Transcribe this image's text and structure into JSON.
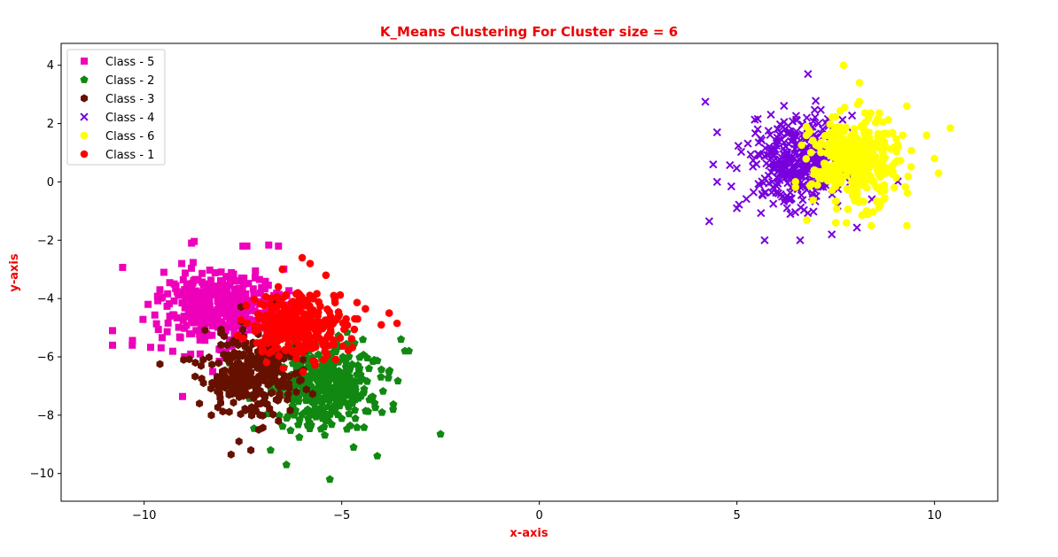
{
  "chart_data": {
    "type": "scatter",
    "title": "K_Means Clustering For Cluster size = 6",
    "xlabel": "x-axis",
    "ylabel": "y-axis",
    "xlim": [
      -12.1,
      11.6
    ],
    "ylim": [
      -10.95,
      4.75
    ],
    "xticks": [
      -10,
      -5,
      0,
      5,
      10
    ],
    "yticks": [
      -10,
      -8,
      -6,
      -4,
      -2,
      0,
      2,
      4
    ],
    "grid": false,
    "legend_position": "upper-left",
    "label_color": "#ee0000",
    "series": [
      {
        "name": "Class - 5",
        "color": "#ee00bb",
        "marker": "square",
        "center": [
          -8.1,
          -4.3
        ],
        "spread": [
          0.75,
          0.65
        ],
        "count": 380,
        "extreme_points": [
          [
            -10.8,
            -5.1
          ],
          [
            -10.8,
            -5.6
          ],
          [
            -8.8,
            -2.1
          ],
          [
            -7.5,
            -2.2
          ],
          [
            -9.9,
            -4.2
          ],
          [
            -6.6,
            -2.2
          ],
          [
            -9.5,
            -3.1
          ],
          [
            -7.4,
            -2.2
          ],
          [
            -10.3,
            -5.6
          ],
          [
            -9.6,
            -3.7
          ]
        ]
      },
      {
        "name": "Class - 2",
        "color": "#118811",
        "marker": "pentagon",
        "center": [
          -5.4,
          -7.0
        ],
        "spread": [
          0.7,
          0.75
        ],
        "count": 380,
        "extreme_points": [
          [
            -2.5,
            -8.65
          ],
          [
            -5.3,
            -10.2
          ],
          [
            -6.4,
            -9.7
          ],
          [
            -4.1,
            -9.4
          ],
          [
            -3.4,
            -5.8
          ],
          [
            -3.3,
            -5.8
          ],
          [
            -3.5,
            -5.4
          ],
          [
            -3.7,
            -7.8
          ],
          [
            -6.8,
            -9.2
          ],
          [
            -4.7,
            -9.1
          ]
        ]
      },
      {
        "name": "Class - 3",
        "color": "#661100",
        "marker": "hexagon",
        "center": [
          -7.3,
          -6.6
        ],
        "spread": [
          0.6,
          0.7
        ],
        "count": 300,
        "extreme_points": [
          [
            -9.6,
            -6.25
          ],
          [
            -7.8,
            -9.35
          ],
          [
            -7.3,
            -9.2
          ],
          [
            -7.6,
            -8.9
          ],
          [
            -8.6,
            -7.6
          ],
          [
            -9.0,
            -6.1
          ],
          [
            -7.1,
            -8.5
          ],
          [
            -8.3,
            -8.0
          ],
          [
            -6.6,
            -8.2
          ],
          [
            -8.5,
            -6.9
          ]
        ]
      },
      {
        "name": "Class - 4",
        "color": "#7700dd",
        "marker": "x",
        "center": [
          6.5,
          0.7
        ],
        "spread": [
          0.6,
          0.75
        ],
        "count": 380,
        "extreme_points": [
          [
            4.2,
            2.75
          ],
          [
            4.3,
            -1.35
          ],
          [
            4.4,
            0.6
          ],
          [
            4.5,
            1.7
          ],
          [
            6.8,
            3.7
          ],
          [
            5.7,
            -2.0
          ],
          [
            6.6,
            -2.0
          ],
          [
            4.5,
            0.0
          ],
          [
            7.4,
            -1.8
          ],
          [
            5.0,
            -0.9
          ]
        ]
      },
      {
        "name": "Class - 6",
        "color": "#ffff00",
        "marker": "circle",
        "center": [
          8.0,
          0.7
        ],
        "spread": [
          0.55,
          0.75
        ],
        "count": 360,
        "extreme_points": [
          [
            7.7,
            4.0
          ],
          [
            10.4,
            1.85
          ],
          [
            10.1,
            0.3
          ],
          [
            9.3,
            -1.5
          ],
          [
            8.4,
            -1.5
          ],
          [
            9.3,
            2.6
          ],
          [
            9.8,
            1.6
          ],
          [
            10.0,
            0.8
          ],
          [
            7.5,
            -1.4
          ],
          [
            8.1,
            3.4
          ]
        ]
      },
      {
        "name": "Class - 1",
        "color": "#ff0000",
        "marker": "circle",
        "center": [
          -6.1,
          -4.9
        ],
        "spread": [
          0.6,
          0.55
        ],
        "count": 320,
        "extreme_points": [
          [
            -6.0,
            -2.6
          ],
          [
            -3.6,
            -4.85
          ],
          [
            -4.0,
            -4.9
          ],
          [
            -3.8,
            -4.5
          ],
          [
            -4.4,
            -4.35
          ],
          [
            -5.8,
            -2.8
          ],
          [
            -6.5,
            -3.0
          ],
          [
            -5.2,
            -3.9
          ],
          [
            -4.6,
            -4.7
          ],
          [
            -5.4,
            -3.2
          ]
        ]
      }
    ]
  }
}
